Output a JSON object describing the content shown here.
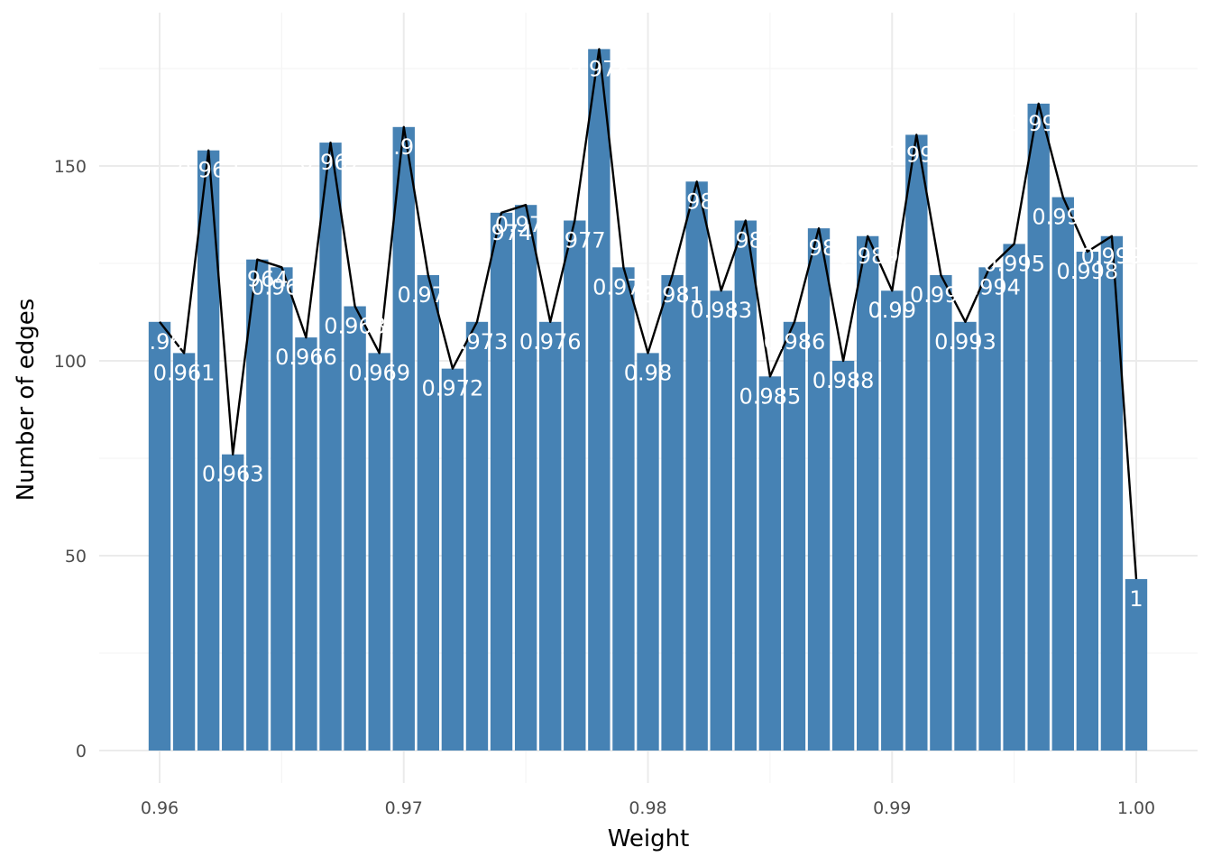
{
  "chart_data": {
    "type": "bar",
    "xlabel": "Weight",
    "ylabel": "Number of edges",
    "xlim": [
      0.958,
      1.002
    ],
    "ylim": [
      -8,
      190
    ],
    "x_ticks": [
      0.96,
      0.97,
      0.98,
      0.99,
      1.0
    ],
    "x_tick_labels": [
      "0.96",
      "0.97",
      "0.98",
      "0.99",
      "1.00"
    ],
    "y_ticks": [
      0,
      50,
      100,
      150
    ],
    "y_tick_labels": [
      "0",
      "50",
      "100",
      "150"
    ],
    "grid": true,
    "bar_color": "#4682b4",
    "line_color": "#000000",
    "label_color": "#ffffff",
    "x": [
      0.96,
      0.961,
      0.962,
      0.963,
      0.964,
      0.965,
      0.966,
      0.967,
      0.968,
      0.969,
      0.97,
      0.971,
      0.972,
      0.973,
      0.974,
      0.975,
      0.976,
      0.977,
      0.978,
      0.979,
      0.98,
      0.981,
      0.982,
      0.983,
      0.984,
      0.985,
      0.986,
      0.987,
      0.988,
      0.989,
      0.99,
      0.991,
      0.992,
      0.993,
      0.994,
      0.995,
      0.996,
      0.997,
      0.998,
      0.999,
      1.0
    ],
    "values": [
      110,
      102,
      154,
      76,
      126,
      124,
      106,
      156,
      114,
      102,
      160,
      122,
      98,
      110,
      138,
      140,
      110,
      136,
      180,
      124,
      102,
      122,
      146,
      118,
      136,
      96,
      110,
      134,
      100,
      132,
      118,
      158,
      122,
      110,
      124,
      130,
      166,
      142,
      128,
      132,
      44
    ],
    "bar_labels": [
      "0.96",
      "0.961",
      "0.962",
      "0.963",
      "0.964",
      "0.965",
      "0.966",
      "0.967",
      "0.968",
      "0.969",
      "0.97",
      "0.971",
      "0.972",
      "0.973",
      "0.974",
      "0.975",
      "0.976",
      "0.977",
      "0.978",
      "0.979",
      "0.98",
      "0.981",
      "0.982",
      "0.983",
      "0.984",
      "0.985",
      "0.986",
      "0.987",
      "0.988",
      "0.989",
      "0.99",
      "0.991",
      "0.992",
      "0.993",
      "0.994",
      "0.995",
      "0.996",
      "0.997",
      "0.998",
      "0.999",
      "1"
    ]
  }
}
